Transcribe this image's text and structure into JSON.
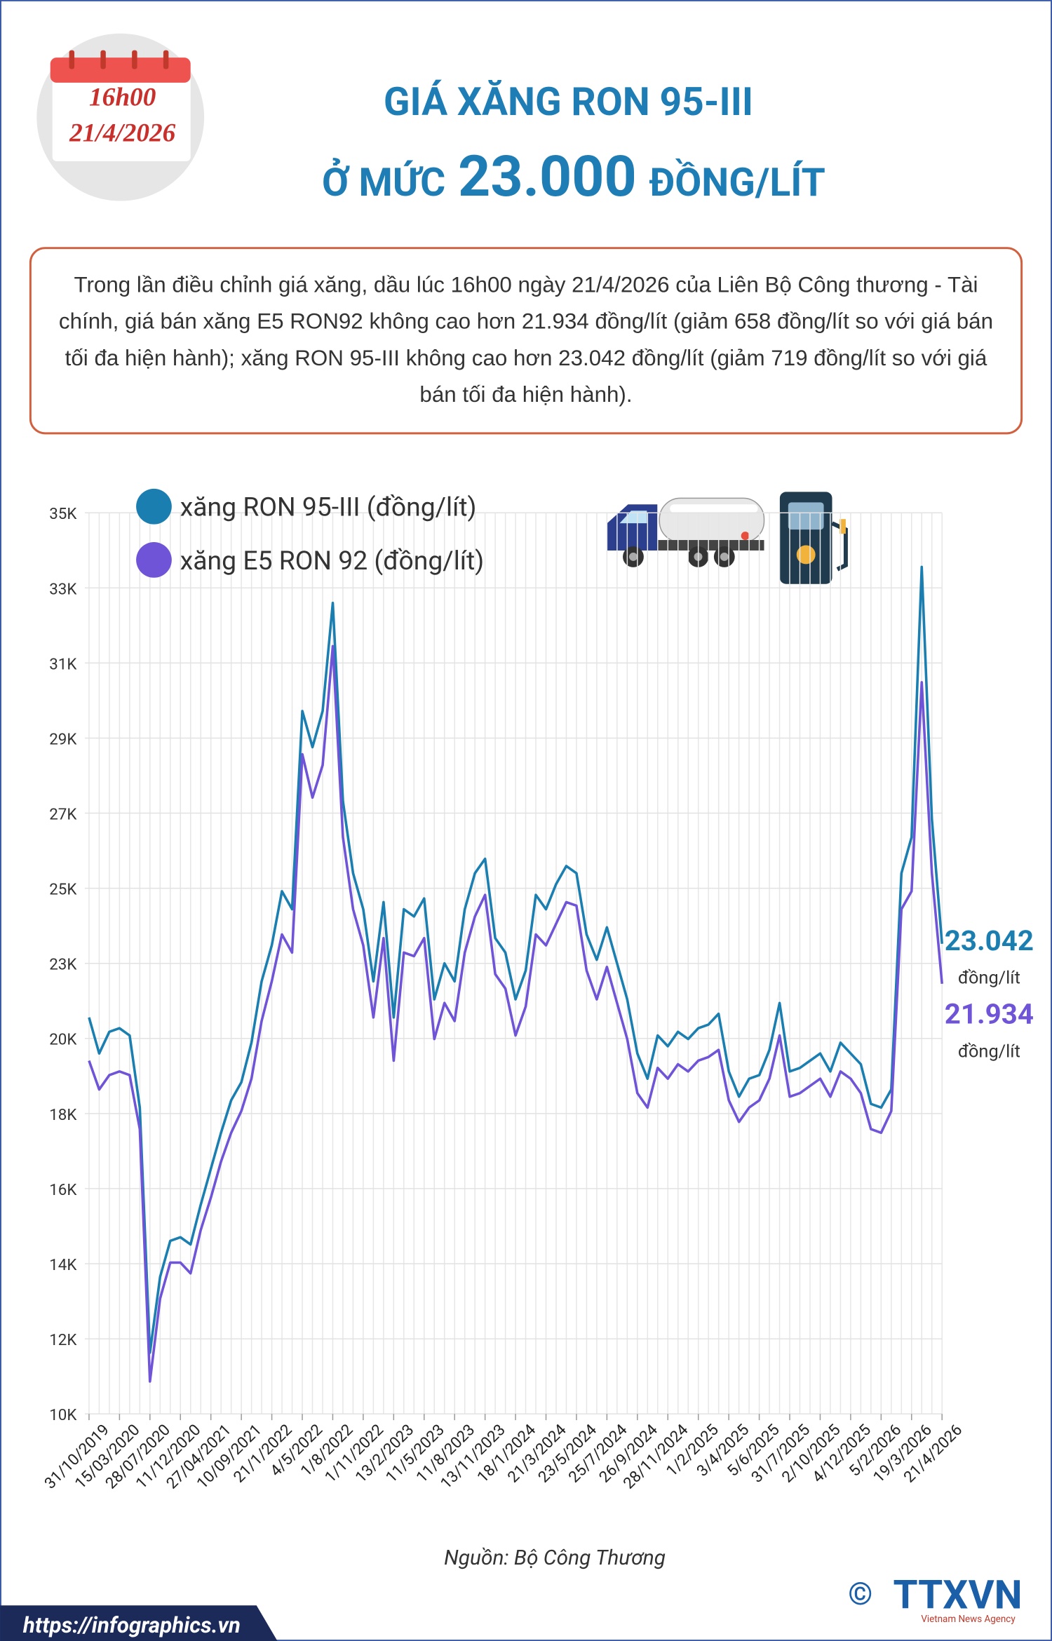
{
  "header": {
    "time": "16h00",
    "date": "21/4/2026"
  },
  "title": {
    "line1": "GIÁ XĂNG RON 95-III",
    "prefix": "Ở MỨC",
    "price": "23.000",
    "unit": "ĐỒNG/LÍT"
  },
  "description": "Trong lần điều chỉnh giá xăng, dầu lúc 16h00 ngày 21/4/2026 của Liên Bộ Công thương - Tài chính, giá bán xăng E5 RON92 không cao hơn 21.934 đồng/lít (giảm 658 đồng/lít so với giá bán tối đa hiện hành); xăng RON 95-III không cao hơn 23.042 đồng/lít (giảm 719 đồng/lít so với giá bán tối đa hiện hành).",
  "chart_data": {
    "type": "line",
    "categories": [
      "31/10/2019",
      null,
      null,
      "15/03/2020",
      null,
      null,
      "28/07/2020",
      null,
      null,
      "11/12/2020",
      null,
      null,
      "27/04/2021",
      null,
      null,
      "10/09/2021",
      null,
      null,
      "21/1/2022",
      null,
      null,
      "4/5/2022",
      null,
      null,
      "1/8/2022",
      null,
      null,
      "1/11/2022",
      null,
      null,
      "13/2/2023",
      null,
      null,
      "11/5/2023",
      null,
      null,
      "11/8/2023",
      null,
      null,
      "13/11/2023",
      null,
      null,
      "18/1/2024",
      null,
      null,
      "21/3/2024",
      null,
      null,
      "23/5/2024",
      null,
      null,
      "25/7/2024",
      null,
      null,
      "26/9/2024",
      null,
      null,
      "28/11/2024",
      null,
      null,
      "1/2/2025",
      null,
      null,
      "3/4/2025",
      null,
      null,
      "5/6/2025",
      null,
      null,
      "31/7/2025",
      null,
      null,
      "2/10/2025",
      null,
      null,
      "4/12/2025",
      null,
      null,
      "5/2/2026",
      null,
      null,
      "19/3/2026",
      null,
      null,
      "21/4/2026"
    ],
    "series": [
      {
        "name": "xăng RON 95-III (đồng/lít)",
        "color": "#1a7fb0",
        "end_label": "23.042",
        "end_unit": "đồng/lít",
        "values": [
          21000,
          20000,
          20600,
          20700,
          20500,
          18500,
          11700,
          13800,
          14800,
          14900,
          14700,
          15800,
          16800,
          17800,
          18700,
          19200,
          20300,
          22000,
          23000,
          24500,
          24000,
          29500,
          28500,
          29500,
          32500,
          27000,
          25000,
          24000,
          22000,
          24200,
          21000,
          24000,
          23800,
          24300,
          21500,
          22500,
          22000,
          24000,
          25000,
          25400,
          23200,
          22800,
          21500,
          22300,
          24400,
          24000,
          24700,
          25200,
          25000,
          23300,
          22600,
          23500,
          22500,
          21500,
          20000,
          19300,
          20500,
          20200,
          20600,
          20400,
          20700,
          20800,
          21100,
          19500,
          18800,
          19300,
          19400,
          20100,
          21400,
          19500,
          19600,
          19800,
          20000,
          19500,
          20300,
          20000,
          19700,
          18600,
          18500,
          19000,
          25000,
          26000,
          33500,
          26500,
          23042
        ]
      },
      {
        "name": "xăng E5 RON 92 (đồng/lít)",
        "color": "#7054d8",
        "end_label": "21.934",
        "end_unit": "đồng/lít",
        "values": [
          19800,
          19000,
          19400,
          19500,
          19400,
          17900,
          10900,
          13200,
          14200,
          14200,
          13900,
          15100,
          16000,
          17000,
          17800,
          18400,
          19300,
          20900,
          22000,
          23300,
          22800,
          28300,
          27100,
          28000,
          31300,
          26000,
          24000,
          23000,
          21000,
          23200,
          19800,
          22800,
          22700,
          23200,
          20400,
          21400,
          20900,
          22800,
          23800,
          24400,
          22200,
          21800,
          20500,
          21300,
          23300,
          23000,
          23600,
          24200,
          24100,
          22300,
          21500,
          22400,
          21400,
          20400,
          18900,
          18500,
          19600,
          19300,
          19700,
          19500,
          19800,
          19900,
          20100,
          18700,
          18100,
          18500,
          18700,
          19300,
          20500,
          18800,
          18900,
          19100,
          19300,
          18800,
          19500,
          19300,
          18900,
          17900,
          17800,
          18400,
          24000,
          24500,
          30300,
          25000,
          21934
        ]
      }
    ],
    "ylim": [
      10000,
      35000
    ],
    "yticks": [
      {
        "value": 35000,
        "label": "35K"
      },
      {
        "value": 32917,
        "label": "33K"
      },
      {
        "value": 30833,
        "label": "31K"
      },
      {
        "value": 28750,
        "label": "29K"
      },
      {
        "value": 26667,
        "label": "27K"
      },
      {
        "value": 24583,
        "label": "25K"
      },
      {
        "value": 22500,
        "label": "23K"
      },
      {
        "value": 20417,
        "label": "20K"
      },
      {
        "value": 18333,
        "label": "18K"
      },
      {
        "value": 16250,
        "label": "16K"
      },
      {
        "value": 14167,
        "label": "14K"
      },
      {
        "value": 12083,
        "label": "12K"
      },
      {
        "value": 10000,
        "label": "10K"
      }
    ],
    "grid": true,
    "legend": "top-left"
  },
  "source": "Nguồn: Bộ Công Thương",
  "footer": {
    "url": "https://infographics.vn",
    "logo": "TTXVN",
    "logo_sub": "Vietnam News Agency",
    "copyright": "©"
  }
}
